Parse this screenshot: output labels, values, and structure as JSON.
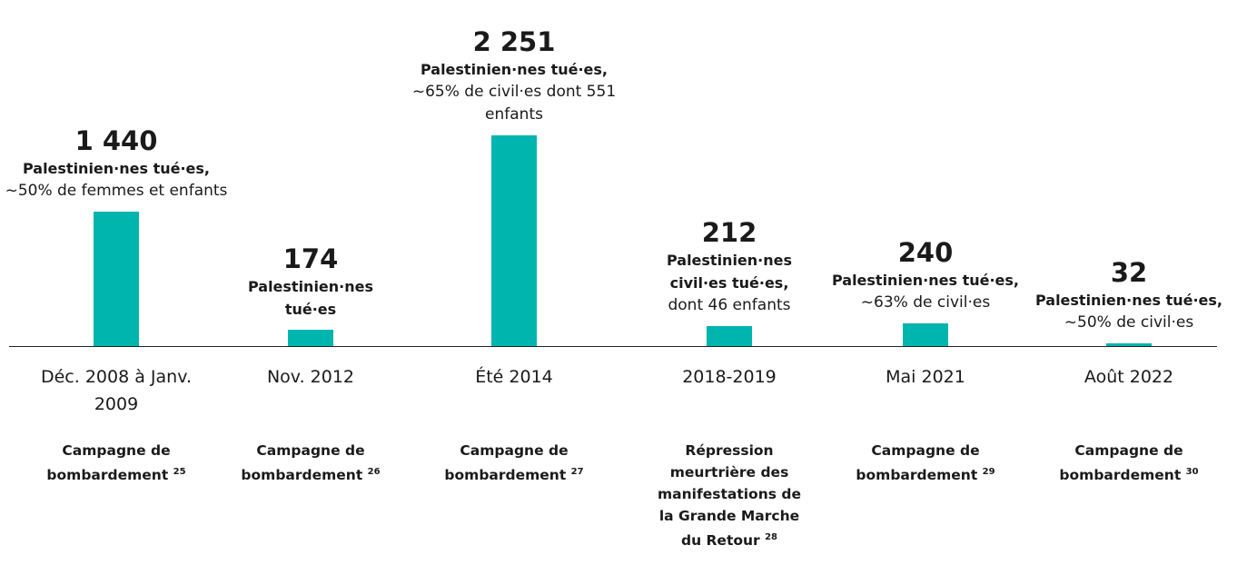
{
  "chart_data": {
    "type": "bar",
    "color": "#00b5ad",
    "categories": [
      "Déc. 2008 à Janv. 2009",
      "Nov. 2012",
      "Été 2014",
      "2018-2019",
      "Mai 2021",
      "Août 2022"
    ],
    "values": [
      1440,
      174,
      2251,
      212,
      240,
      32
    ],
    "value_labels": [
      "1 440",
      "174",
      "2 251",
      "212",
      "240",
      "32"
    ],
    "annotations": [
      {
        "bold": "Palestinien·nes tué·es,",
        "normal": "~50% de femmes et enfants"
      },
      {
        "bold": "Palestinien·nes tué·es"
      },
      {
        "bold": "Palestinien·nes tué·es,",
        "normal": "~65% de civil·es dont 551 enfants"
      },
      {
        "bold": "Palestinien·nes civil·es tué·es,",
        "normal": "dont 46 enfants"
      },
      {
        "bold": "Palestinien·nes tué·es,",
        "normal": "~63% de civil·es"
      },
      {
        "bold": "Palestinien·nes tué·es,",
        "normal": "~50% de civil·es"
      }
    ],
    "events": [
      {
        "text": "Campagne de bombardement",
        "note": "25"
      },
      {
        "text": "Campagne de bombardement",
        "note": "26"
      },
      {
        "text": "Campagne de bombardement",
        "note": "27"
      },
      {
        "text": "Répression meurtrière des manifestations de la Grande Marche du Retour",
        "note": "28"
      },
      {
        "text": "Campagne de bombardement",
        "note": "29"
      },
      {
        "text": "Campagne de bombardement",
        "note": "30"
      }
    ]
  }
}
